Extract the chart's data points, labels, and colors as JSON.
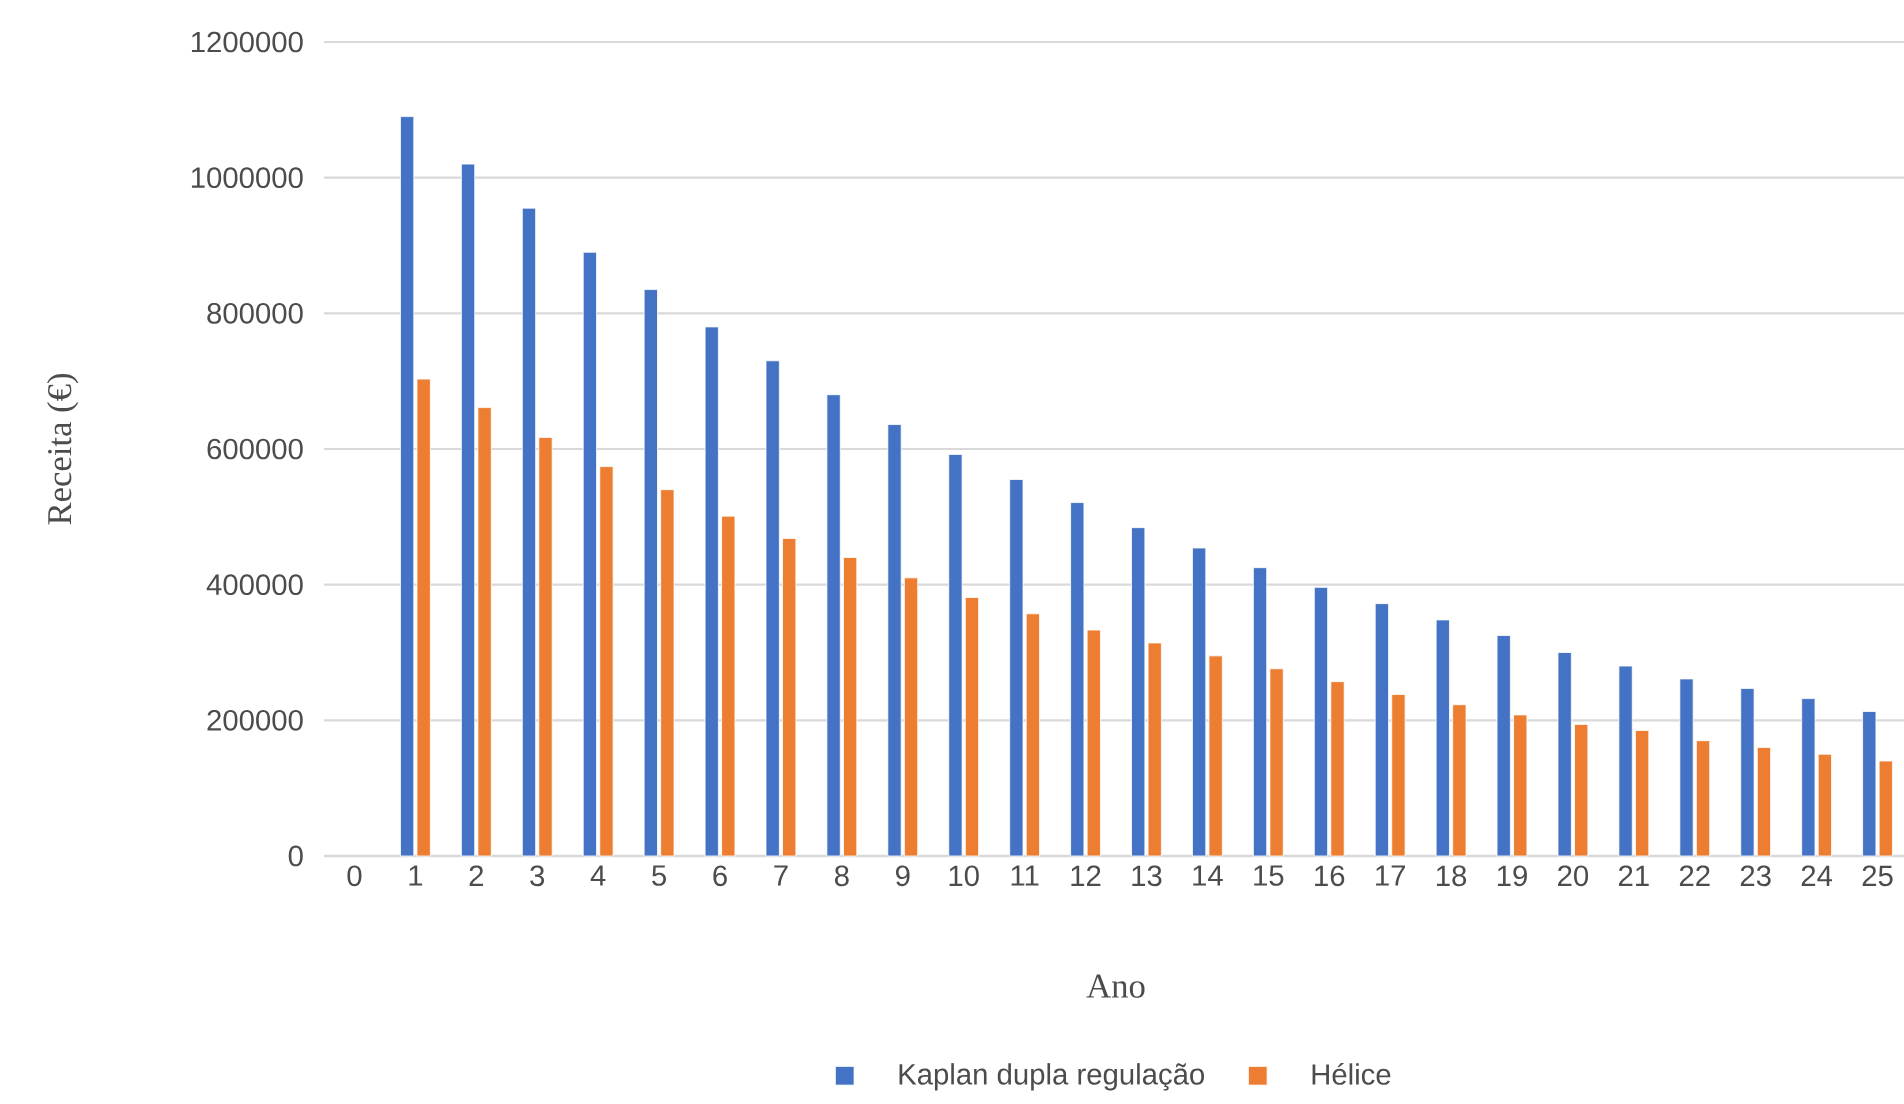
{
  "chart_data": {
    "type": "bar",
    "xlabel": "Ano",
    "ylabel": "Receita (€)",
    "categories": [
      "0",
      "1",
      "2",
      "3",
      "4",
      "5",
      "6",
      "7",
      "8",
      "9",
      "10",
      "11",
      "12",
      "13",
      "14",
      "15",
      "16",
      "17",
      "18",
      "19",
      "20",
      "21",
      "22",
      "23",
      "24",
      "25"
    ],
    "series": [
      {
        "name": "Kaplan dupla regulação",
        "color": "#4472c4",
        "values": [
          null,
          1090000,
          1020000,
          955000,
          890000,
          835000,
          780000,
          730000,
          680000,
          636000,
          592000,
          555000,
          521000,
          484000,
          454000,
          425000,
          396000,
          372000,
          348000,
          325000,
          300000,
          280000,
          261000,
          247000,
          232000,
          213000
        ]
      },
      {
        "name": "Hélice",
        "color": "#ed7d31",
        "values": [
          null,
          703000,
          661000,
          617000,
          574000,
          540000,
          501000,
          468000,
          440000,
          410000,
          381000,
          357000,
          333000,
          314000,
          295000,
          276000,
          257000,
          238000,
          223000,
          208000,
          194000,
          185000,
          170000,
          160000,
          150000,
          140000
        ]
      }
    ],
    "ylim": [
      0,
      1200000
    ],
    "yticks": [
      0,
      200000,
      400000,
      600000,
      800000,
      1000000,
      1200000
    ],
    "grid": "y",
    "legend": "bottom"
  }
}
